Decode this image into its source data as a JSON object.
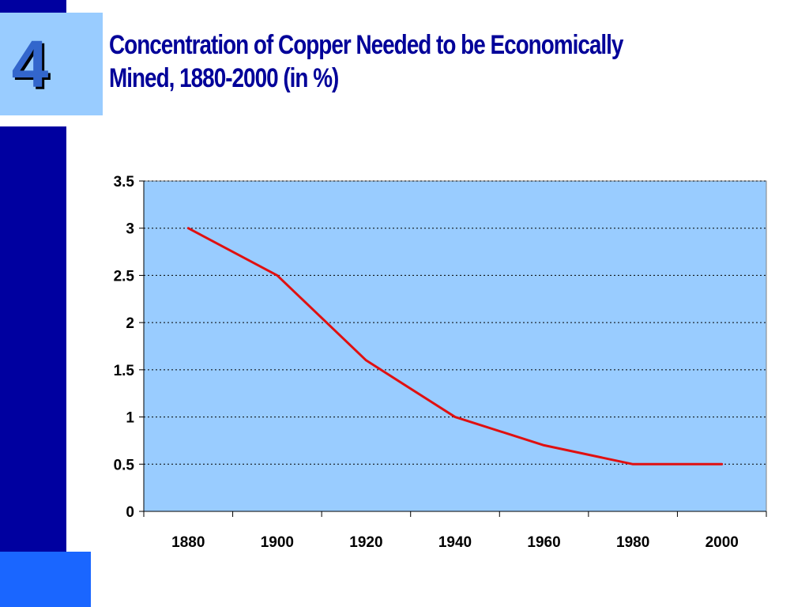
{
  "slide": {
    "number": "4",
    "title_line1": "Concentration of Copper Needed to be Economically",
    "title_line2": "Mined, 1880-2000 (in %)"
  },
  "colors": {
    "left_bar": "#0000a0",
    "number_box": "#99ccff",
    "number_text": "#3366cc",
    "bottom_block": "#1a66ff",
    "title_text": "#000099",
    "plot_background": "#99ccff",
    "line": "#e01010",
    "gridline": "#000000"
  },
  "chart_data": {
    "type": "line",
    "title": "Concentration of Copper Needed to be Economically Mined, 1880-2000 (in %)",
    "xlabel": "",
    "ylabel": "",
    "categories": [
      "1880",
      "1900",
      "1920",
      "1940",
      "1960",
      "1980",
      "2000"
    ],
    "series": [
      {
        "values": [
          3.0,
          2.5,
          1.6,
          1.0,
          0.7,
          0.5,
          0.5
        ]
      }
    ],
    "ylim": [
      0,
      3.5
    ],
    "yticks": [
      "0",
      "0.5",
      "1",
      "1.5",
      "2",
      "2.5",
      "3",
      "3.5"
    ],
    "ytick_values": [
      0,
      0.5,
      1,
      1.5,
      2,
      2.5,
      3,
      3.5
    ],
    "grid": "horizontal-dotted",
    "legend": "none"
  }
}
